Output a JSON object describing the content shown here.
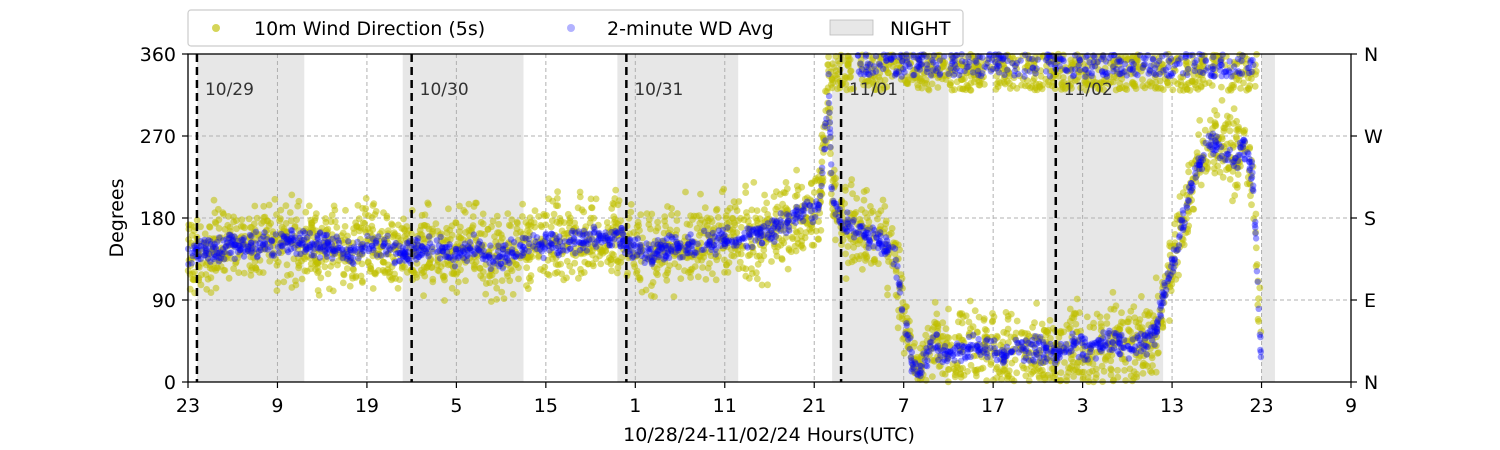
{
  "chart_data": {
    "type": "scatter",
    "xlabel": "10/28/24-11/02/24  Hours(UTC)",
    "ylabel": "Degrees",
    "x_unit": "hours since 10/28 00:00 UTC",
    "xlim": [
      23,
      153
    ],
    "ylim": [
      0,
      360
    ],
    "x_tick_values": [
      23,
      33,
      43,
      53,
      63,
      73,
      83,
      93,
      103,
      113,
      123,
      133,
      143,
      153
    ],
    "x_tick_labels": [
      "23",
      "9",
      "19",
      "5",
      "15",
      "1",
      "11",
      "21",
      "7",
      "17",
      "3",
      "13",
      "23",
      "9"
    ],
    "y_ticks": [
      0,
      90,
      180,
      270,
      360
    ],
    "y_right_ticks": [
      0,
      90,
      180,
      270,
      360
    ],
    "y_right_labels": [
      "N",
      "E",
      "S",
      "W",
      "N"
    ],
    "grid": true,
    "legend_position": "top",
    "day_markers": [
      {
        "hour": 24,
        "label": "10/29"
      },
      {
        "hour": 48,
        "label": "10/30"
      },
      {
        "hour": 72,
        "label": "10/31"
      },
      {
        "hour": 96,
        "label": "11/01"
      },
      {
        "hour": 120,
        "label": "11/02"
      }
    ],
    "night_periods": [
      [
        24,
        36
      ],
      [
        47,
        60.5
      ],
      [
        71,
        84.5
      ],
      [
        95,
        108
      ],
      [
        119,
        132
      ],
      [
        143,
        144.5
      ]
    ],
    "series": [
      {
        "name": "10m Wind Direction (5s)",
        "color": "#bfbf00",
        "marker": "circle",
        "spread_deg": 32,
        "points": [
          [
            23,
            140
          ],
          [
            25,
            142
          ],
          [
            27,
            150
          ],
          [
            29,
            148
          ],
          [
            31,
            152
          ],
          [
            33,
            150
          ],
          [
            35,
            155
          ],
          [
            37,
            148
          ],
          [
            39,
            150
          ],
          [
            41,
            140
          ],
          [
            43,
            152
          ],
          [
            45,
            150
          ],
          [
            47,
            138
          ],
          [
            49,
            148
          ],
          [
            51,
            145
          ],
          [
            53,
            140
          ],
          [
            55,
            148
          ],
          [
            57,
            135
          ],
          [
            59,
            142
          ],
          [
            61,
            150
          ],
          [
            63,
            152
          ],
          [
            65,
            150
          ],
          [
            67,
            155
          ],
          [
            69,
            158
          ],
          [
            71,
            162
          ],
          [
            72,
            150
          ],
          [
            74,
            140
          ],
          [
            76,
            145
          ],
          [
            78,
            150
          ],
          [
            80,
            152
          ],
          [
            82,
            155
          ],
          [
            84,
            155
          ],
          [
            86,
            160
          ],
          [
            88,
            165
          ],
          [
            90,
            175
          ],
          [
            92,
            185
          ],
          [
            93.5,
            192
          ],
          [
            94,
            240
          ],
          [
            94.6,
            330
          ],
          [
            95,
            200
          ],
          [
            96,
            175
          ],
          [
            98,
            165
          ],
          [
            100,
            155
          ],
          [
            101,
            150
          ],
          [
            102,
            140
          ],
          [
            103,
            80
          ],
          [
            104,
            20
          ],
          [
            105,
            10
          ],
          [
            106,
            45
          ],
          [
            108,
            30
          ],
          [
            110,
            35
          ],
          [
            112,
            40
          ],
          [
            114,
            30
          ],
          [
            116,
            40
          ],
          [
            118,
            35
          ],
          [
            120,
            30
          ],
          [
            122,
            40
          ],
          [
            124,
            35
          ],
          [
            126,
            45
          ],
          [
            128,
            40
          ],
          [
            130,
            45
          ],
          [
            131,
            50
          ],
          [
            132,
            90
          ],
          [
            133,
            130
          ],
          [
            134,
            170
          ],
          [
            135,
            210
          ],
          [
            136,
            240
          ],
          [
            137,
            260
          ],
          [
            138,
            265
          ],
          [
            139,
            250
          ],
          [
            140,
            245
          ],
          [
            141,
            260
          ],
          [
            142,
            230
          ],
          [
            143,
            20
          ]
        ]
      },
      {
        "name": "2-minute WD Avg",
        "color": "#0000ff",
        "marker": "circle",
        "spread_deg": 10,
        "points": [
          [
            23,
            140
          ],
          [
            25,
            142
          ],
          [
            27,
            150
          ],
          [
            29,
            148
          ],
          [
            31,
            152
          ],
          [
            33,
            150
          ],
          [
            35,
            155
          ],
          [
            37,
            148
          ],
          [
            39,
            150
          ],
          [
            41,
            140
          ],
          [
            43,
            152
          ],
          [
            45,
            150
          ],
          [
            47,
            138
          ],
          [
            49,
            148
          ],
          [
            51,
            145
          ],
          [
            53,
            140
          ],
          [
            55,
            148
          ],
          [
            57,
            135
          ],
          [
            59,
            142
          ],
          [
            61,
            150
          ],
          [
            63,
            152
          ],
          [
            65,
            150
          ],
          [
            67,
            155
          ],
          [
            69,
            158
          ],
          [
            71,
            162
          ],
          [
            72,
            150
          ],
          [
            74,
            140
          ],
          [
            76,
            145
          ],
          [
            78,
            150
          ],
          [
            80,
            152
          ],
          [
            82,
            155
          ],
          [
            84,
            155
          ],
          [
            86,
            160
          ],
          [
            88,
            165
          ],
          [
            90,
            175
          ],
          [
            92,
            185
          ],
          [
            93.5,
            192
          ],
          [
            94,
            240
          ],
          [
            94.6,
            330
          ],
          [
            95,
            200
          ],
          [
            96,
            175
          ],
          [
            98,
            165
          ],
          [
            100,
            155
          ],
          [
            101,
            150
          ],
          [
            102,
            140
          ],
          [
            103,
            80
          ],
          [
            104,
            20
          ],
          [
            105,
            10
          ],
          [
            106,
            45
          ],
          [
            108,
            30
          ],
          [
            110,
            35
          ],
          [
            112,
            40
          ],
          [
            114,
            30
          ],
          [
            116,
            40
          ],
          [
            118,
            35
          ],
          [
            120,
            30
          ],
          [
            122,
            40
          ],
          [
            124,
            35
          ],
          [
            126,
            45
          ],
          [
            128,
            40
          ],
          [
            130,
            45
          ],
          [
            131,
            50
          ],
          [
            132,
            90
          ],
          [
            133,
            130
          ],
          [
            134,
            170
          ],
          [
            135,
            210
          ],
          [
            136,
            240
          ],
          [
            137,
            260
          ],
          [
            138,
            265
          ],
          [
            139,
            250
          ],
          [
            140,
            245
          ],
          [
            141,
            260
          ],
          [
            142,
            230
          ],
          [
            143,
            20
          ]
        ]
      }
    ],
    "north_band": {
      "name": "10m Wind Direction (5s) near north",
      "x_range": [
        94.5,
        142.5
      ],
      "y_range": [
        320,
        360
      ]
    }
  },
  "legend": {
    "item1": "10m Wind Direction (5s)",
    "item2": "2-minute WD Avg",
    "item3": "NIGHT"
  }
}
